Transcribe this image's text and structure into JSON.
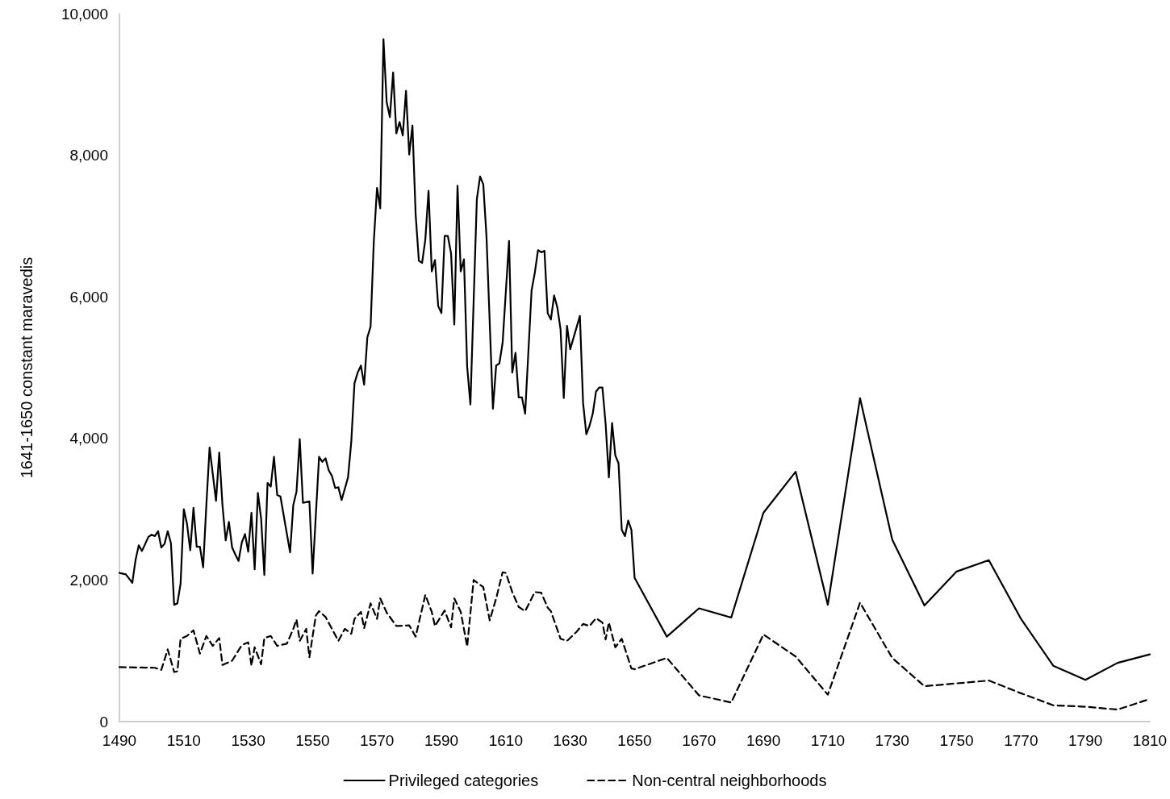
{
  "chart_data": {
    "type": "line",
    "ylabel": "1641-1650 constant maravedis",
    "xlim": [
      1490,
      1810
    ],
    "xticks": [
      1490,
      1510,
      1530,
      1550,
      1570,
      1590,
      1610,
      1630,
      1650,
      1670,
      1690,
      1710,
      1730,
      1750,
      1770,
      1790,
      1810
    ],
    "ylim": [
      0,
      10000
    ],
    "yticks": [
      {
        "value": 0,
        "label": "0"
      },
      {
        "value": 2000,
        "label": "2,000"
      },
      {
        "value": 4000,
        "label": "4,000"
      },
      {
        "value": 6000,
        "label": "6,000"
      },
      {
        "value": 8000,
        "label": "8,000"
      },
      {
        "value": 10000,
        "label": "10,000"
      }
    ],
    "grid": false,
    "legend": "bottom",
    "marker": "none",
    "series": [
      {
        "name": "Privileged categories",
        "color": "#000000",
        "line_style": "solid",
        "x": [
          1490,
          1492,
          1494,
          1495,
          1496,
          1497,
          1499,
          1500,
          1501,
          1502,
          1503,
          1504,
          1505,
          1506,
          1507,
          1508,
          1509,
          1510,
          1511,
          1512,
          1513,
          1514,
          1515,
          1516,
          1517,
          1518,
          1520,
          1521,
          1522,
          1523,
          1524,
          1525,
          1526,
          1527,
          1528,
          1529,
          1530,
          1531,
          1532,
          1533,
          1534,
          1535,
          1536,
          1537,
          1538,
          1539,
          1540,
          1543,
          1544,
          1545,
          1546,
          1547,
          1549,
          1550,
          1552,
          1553,
          1554,
          1555,
          1556,
          1557,
          1558,
          1559,
          1561,
          1562,
          1563,
          1564,
          1565,
          1566,
          1567,
          1568,
          1569,
          1570,
          1571,
          1572,
          1573,
          1574,
          1575,
          1576,
          1577,
          1578,
          1579,
          1580,
          1581,
          1582,
          1583,
          1584,
          1585,
          1586,
          1587,
          1588,
          1589,
          1590,
          1591,
          1592,
          1593,
          1594,
          1595,
          1596,
          1597,
          1598,
          1599,
          1601,
          1602,
          1603,
          1604,
          1606,
          1607,
          1608,
          1609,
          1611,
          1612,
          1613,
          1614,
          1615,
          1616,
          1618,
          1619,
          1620,
          1621,
          1622,
          1623,
          1624,
          1625,
          1626,
          1627,
          1628,
          1629,
          1630,
          1633,
          1634,
          1635,
          1636,
          1637,
          1638,
          1639,
          1640,
          1641,
          1642,
          1643,
          1644,
          1645,
          1646,
          1647,
          1648,
          1649,
          1650,
          1660,
          1670,
          1680,
          1690,
          1700,
          1710,
          1720,
          1730,
          1740,
          1750,
          1760,
          1770,
          1780,
          1790,
          1800,
          1810
        ],
        "values": [
          2100,
          2080,
          1960,
          2280,
          2490,
          2410,
          2610,
          2640,
          2620,
          2690,
          2460,
          2510,
          2690,
          2520,
          1650,
          1670,
          1950,
          3000,
          2790,
          2420,
          3020,
          2470,
          2470,
          2180,
          3060,
          3870,
          3120,
          3800,
          3060,
          2560,
          2820,
          2460,
          2360,
          2270,
          2530,
          2650,
          2400,
          2950,
          2150,
          3230,
          2870,
          2070,
          3370,
          3320,
          3740,
          3200,
          3180,
          2390,
          3060,
          3250,
          3990,
          3090,
          3110,
          2090,
          3740,
          3670,
          3720,
          3550,
          3470,
          3300,
          3310,
          3130,
          3450,
          3950,
          4780,
          4930,
          5030,
          4760,
          5430,
          5580,
          6780,
          7540,
          7250,
          9640,
          8750,
          8540,
          9170,
          8310,
          8470,
          8280,
          8910,
          8010,
          8420,
          7160,
          6510,
          6480,
          6810,
          7500,
          6360,
          6520,
          5870,
          5770,
          6860,
          6860,
          6610,
          5610,
          7570,
          6360,
          6530,
          5010,
          4480,
          7380,
          7700,
          7590,
          6850,
          4420,
          5030,
          5060,
          5350,
          6790,
          4930,
          5210,
          4580,
          4580,
          4350,
          6090,
          6340,
          6660,
          6630,
          6650,
          5770,
          5680,
          6020,
          5850,
          5540,
          4570,
          5590,
          5260,
          5730,
          4500,
          4060,
          4180,
          4350,
          4660,
          4720,
          4720,
          4200,
          3450,
          4220,
          3760,
          3650,
          2710,
          2620,
          2840,
          2710,
          2030,
          1200,
          1600,
          1470,
          2950,
          3530,
          1650,
          4570,
          2570,
          1640,
          2120,
          2280,
          1450,
          790,
          590,
          830,
          950
        ]
      },
      {
        "name": "Non-central neighborhoods",
        "color": "#000000",
        "line_style": "dashed",
        "x": [
          1490,
          1501,
          1503,
          1505,
          1507,
          1508,
          1509,
          1511,
          1513,
          1515,
          1517,
          1519,
          1521,
          1522,
          1525,
          1528,
          1530,
          1531,
          1532,
          1534,
          1535,
          1537,
          1539,
          1542,
          1544,
          1545,
          1546,
          1548,
          1549,
          1551,
          1552,
          1554,
          1558,
          1560,
          1562,
          1563,
          1565,
          1566,
          1568,
          1570,
          1571,
          1573,
          1576,
          1580,
          1582,
          1585,
          1587,
          1588,
          1591,
          1593,
          1594,
          1596,
          1598,
          1600,
          1603,
          1605,
          1607,
          1609,
          1610,
          1612,
          1614,
          1616,
          1619,
          1621,
          1623,
          1624,
          1627,
          1629,
          1632,
          1634,
          1636,
          1638,
          1640,
          1641,
          1642,
          1644,
          1646,
          1649,
          1650,
          1660,
          1670,
          1680,
          1690,
          1700,
          1710,
          1720,
          1730,
          1740,
          1750,
          1760,
          1770,
          1780,
          1790,
          1800,
          1810
        ],
        "values": [
          770,
          760,
          730,
          1020,
          700,
          710,
          1170,
          1210,
          1290,
          960,
          1210,
          1070,
          1180,
          800,
          860,
          1080,
          1120,
          790,
          1050,
          810,
          1180,
          1210,
          1070,
          1100,
          1310,
          1440,
          1140,
          1310,
          910,
          1500,
          1560,
          1480,
          1140,
          1310,
          1240,
          1450,
          1550,
          1320,
          1670,
          1450,
          1740,
          1540,
          1350,
          1360,
          1200,
          1790,
          1550,
          1350,
          1570,
          1330,
          1740,
          1550,
          1060,
          2000,
          1900,
          1430,
          1740,
          2110,
          2100,
          1830,
          1620,
          1560,
          1830,
          1820,
          1610,
          1560,
          1170,
          1140,
          1270,
          1380,
          1350,
          1460,
          1400,
          1160,
          1400,
          1050,
          1170,
          750,
          740,
          900,
          370,
          270,
          1230,
          920,
          380,
          1680,
          900,
          500,
          540,
          580,
          400,
          230,
          210,
          170,
          320
        ]
      }
    ]
  }
}
